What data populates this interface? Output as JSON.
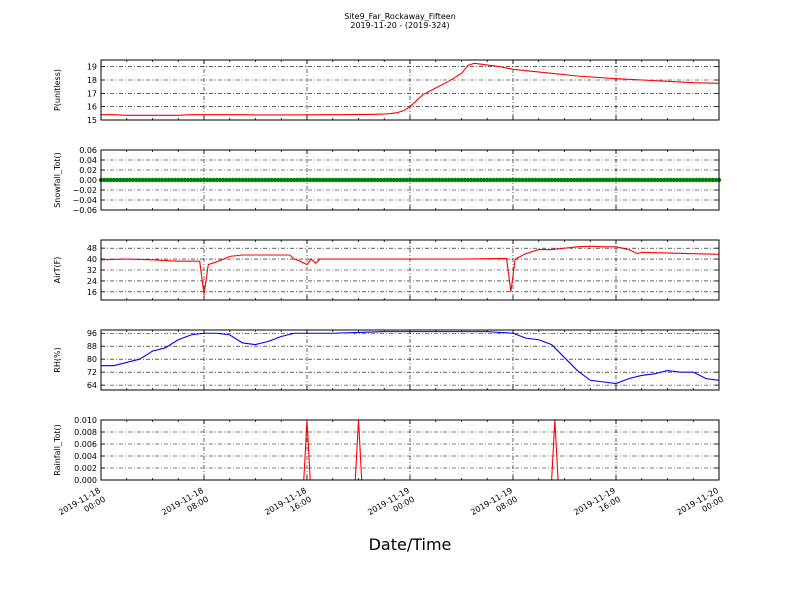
{
  "figure": {
    "title": "Site9_Far_Rockaway_Fifteen",
    "subtitle": "2019-11-20 - (2019-324)",
    "xlabel": "Date/Time",
    "x_ticks": [
      {
        "t": 0,
        "line1": "2019-11-18",
        "line2": "00:00"
      },
      {
        "t": 8,
        "line1": "2019-11-18",
        "line2": "08:00"
      },
      {
        "t": 16,
        "line1": "2019-11-18",
        "line2": "16:00"
      },
      {
        "t": 24,
        "line1": "2019-11-19",
        "line2": "00:00"
      },
      {
        "t": 32,
        "line1": "2019-11-19",
        "line2": "08:00"
      },
      {
        "t": 40,
        "line1": "2019-11-19",
        "line2": "16:00"
      },
      {
        "t": 48,
        "line1": "2019-11-20",
        "line2": "00:00"
      }
    ]
  },
  "chart_data": [
    {
      "type": "line",
      "ylabel": "P(unitless)",
      "color": "#ff0000",
      "ylim": [
        15,
        19.5
      ],
      "yticks": [
        15,
        16,
        17,
        18,
        19
      ],
      "tick_labels": [
        "15",
        "16",
        "17",
        "18",
        "19"
      ],
      "xlim": [
        "2019-11-18 00:00",
        "2019-11-20 00:00"
      ],
      "grid": true,
      "x": [
        "2019-11-18 00:00",
        "2019-11-18 01:00",
        "2019-11-18 02:00",
        "2019-11-18 06:00",
        "2019-11-18 07:00",
        "2019-11-18 11:00",
        "2019-11-18 12:00",
        "2019-11-18 14:00",
        "2019-11-18 18:00",
        "2019-11-18 19:00",
        "2019-11-18 20:00",
        "2019-11-18 21:00",
        "2019-11-18 22:00",
        "2019-11-18 22:30",
        "2019-11-18 23:00",
        "2019-11-18 23:30",
        "2019-11-19 00:00",
        "2019-11-19 01:00",
        "2019-11-19 02:00",
        "2019-11-19 03:00",
        "2019-11-19 03:30",
        "2019-11-19 04:00",
        "2019-11-19 04:30",
        "2019-11-19 05:00",
        "2019-11-19 07:00",
        "2019-11-19 08:00",
        "2019-11-19 09:00",
        "2019-11-19 11:00",
        "2019-11-19 13:00",
        "2019-11-19 16:00",
        "2019-11-19 18:00",
        "2019-11-19 20:00",
        "2019-11-19 22:00",
        "2019-11-20 00:00"
      ],
      "y": [
        15.4,
        15.4,
        15.35,
        15.35,
        15.4,
        15.4,
        15.38,
        15.38,
        15.4,
        15.4,
        15.42,
        15.42,
        15.45,
        15.48,
        15.55,
        15.7,
        16.0,
        16.9,
        17.4,
        17.9,
        18.2,
        18.5,
        19.1,
        19.25,
        19.0,
        18.8,
        18.7,
        18.5,
        18.3,
        18.1,
        18.0,
        17.9,
        17.8,
        17.75
      ]
    },
    {
      "type": "scatter",
      "ylabel": "Snowfall_Tot()",
      "color": "#008000",
      "ylim": [
        -0.06,
        0.06
      ],
      "yticks": [
        -0.06,
        -0.04,
        -0.02,
        0.0,
        0.02,
        0.04,
        0.06
      ],
      "tick_labels": [
        "−0.06",
        "−0.04",
        "−0.02",
        "0.00",
        "0.02",
        "0.04",
        "0.06"
      ],
      "xlim": [
        "2019-11-18 00:00",
        "2019-11-20 00:00"
      ],
      "grid": true,
      "x_start": "2019-11-18 00:00",
      "x_end": "2019-11-20 00:00",
      "interval_minutes": 15,
      "value": 0.0
    },
    {
      "type": "line",
      "ylabel": "AirT(F)",
      "color": "#ff0000",
      "ylim": [
        10,
        54
      ],
      "yticks": [
        16,
        24,
        32,
        40,
        48
      ],
      "tick_labels": [
        "16",
        "24",
        "32",
        "40",
        "48"
      ],
      "xlim": [
        "2019-11-18 00:00",
        "2019-11-20 00:00"
      ],
      "grid": true,
      "x": [
        "2019-11-18 00:00",
        "2019-11-18 02:00",
        "2019-11-18 04:00",
        "2019-11-18 06:00",
        "2019-11-18 07:40",
        "2019-11-18 08:00",
        "2019-11-18 08:20",
        "2019-11-18 09:00",
        "2019-11-18 10:00",
        "2019-11-18 11:00",
        "2019-11-18 12:00",
        "2019-11-18 14:00",
        "2019-11-18 14:40",
        "2019-11-18 15:00",
        "2019-11-18 15:20",
        "2019-11-18 16:00",
        "2019-11-18 16:20",
        "2019-11-18 16:40",
        "2019-11-18 17:00",
        "2019-11-18 20:00",
        "2019-11-19 00:00",
        "2019-11-19 04:00",
        "2019-11-19 07:30",
        "2019-11-19 07:50",
        "2019-11-19 08:10",
        "2019-11-19 09:00",
        "2019-11-19 10:00",
        "2019-11-19 11:00",
        "2019-11-19 12:00",
        "2019-11-19 13:00",
        "2019-11-19 14:00",
        "2019-11-19 15:00",
        "2019-11-19 16:00",
        "2019-11-19 17:00",
        "2019-11-19 17:40",
        "2019-11-19 18:00",
        "2019-11-19 22:00",
        "2019-11-20 00:00"
      ],
      "y": [
        39.5,
        40,
        39.5,
        38.5,
        38.5,
        14,
        36,
        38,
        42,
        43,
        43,
        43,
        43,
        40,
        39,
        36,
        40,
        37,
        40,
        40,
        40,
        40,
        40.5,
        16,
        40,
        44,
        47,
        47,
        48,
        49,
        49.5,
        49,
        49,
        47,
        44,
        45,
        44,
        43.5
      ]
    },
    {
      "type": "line",
      "ylabel": "RH(%)",
      "color": "#0000ff",
      "ylim": [
        61,
        98
      ],
      "yticks": [
        64,
        72,
        80,
        88,
        96
      ],
      "tick_labels": [
        "64",
        "72",
        "80",
        "88",
        "96"
      ],
      "xlim": [
        "2019-11-18 00:00",
        "2019-11-20 00:00"
      ],
      "grid": true,
      "x": [
        "2019-11-18 00:00",
        "2019-11-18 01:00",
        "2019-11-18 02:00",
        "2019-11-18 03:00",
        "2019-11-18 04:00",
        "2019-11-18 05:00",
        "2019-11-18 06:00",
        "2019-11-18 07:00",
        "2019-11-18 08:00",
        "2019-11-18 09:00",
        "2019-11-18 10:00",
        "2019-11-18 11:00",
        "2019-11-18 12:00",
        "2019-11-18 13:00",
        "2019-11-18 14:00",
        "2019-11-18 15:00",
        "2019-11-18 16:00",
        "2019-11-18 18:00",
        "2019-11-18 20:00",
        "2019-11-18 22:00",
        "2019-11-19 00:00",
        "2019-11-19 02:00",
        "2019-11-19 04:00",
        "2019-11-19 06:00",
        "2019-11-19 08:00",
        "2019-11-19 09:00",
        "2019-11-19 10:00",
        "2019-11-19 11:00",
        "2019-11-19 12:00",
        "2019-11-19 13:00",
        "2019-11-19 14:00",
        "2019-11-19 15:00",
        "2019-11-19 16:00",
        "2019-11-19 17:00",
        "2019-11-19 18:00",
        "2019-11-19 19:00",
        "2019-11-19 20:00",
        "2019-11-19 21:00",
        "2019-11-19 22:00",
        "2019-11-19 23:00",
        "2019-11-20 00:00"
      ],
      "y": [
        76,
        76,
        78,
        80,
        85,
        87,
        92,
        95,
        96,
        96,
        95,
        90,
        89,
        91,
        94,
        96,
        96,
        96,
        96.5,
        97,
        97,
        97,
        97,
        97,
        96,
        93,
        92,
        89,
        81,
        73,
        67,
        66,
        65,
        68,
        70,
        71,
        73,
        72,
        72,
        68,
        67
      ]
    },
    {
      "type": "line",
      "ylabel": "Rainfall_Tot()",
      "color": "#ff0000",
      "ylim": [
        0.0,
        0.01
      ],
      "yticks": [
        0.0,
        0.002,
        0.004,
        0.006,
        0.008,
        0.01
      ],
      "tick_labels": [
        "0.000",
        "0.002",
        "0.004",
        "0.006",
        "0.008",
        "0.010"
      ],
      "xlim": [
        "2019-11-18 00:00",
        "2019-11-20 00:00"
      ],
      "grid": true,
      "x": [
        "2019-11-18 00:00",
        "2019-11-18 15:45",
        "2019-11-18 16:00",
        "2019-11-18 16:15",
        "2019-11-18 19:45",
        "2019-11-18 20:00",
        "2019-11-18 20:15",
        "2019-11-19 11:00",
        "2019-11-19 11:15",
        "2019-11-19 11:30",
        "2019-11-20 00:00"
      ],
      "y": [
        0,
        0,
        0.01,
        0,
        0,
        0.01,
        0,
        0,
        0.01,
        0,
        0
      ]
    }
  ]
}
